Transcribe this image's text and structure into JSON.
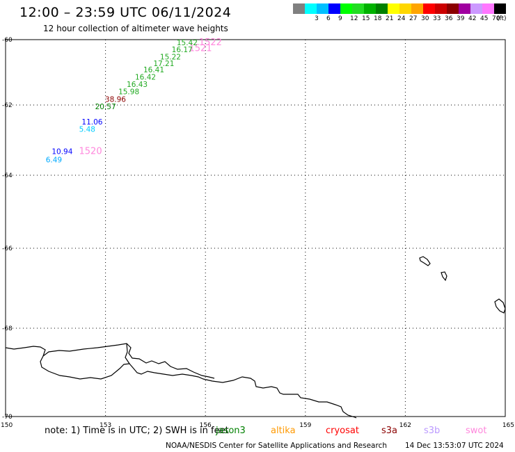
{
  "header": {
    "title": "12:00 – 23:59 UTC 06/11/2024",
    "subtitle": "12 hour collection of altimeter wave heights"
  },
  "legend": {
    "swatches": [
      {
        "color": "#808080",
        "label": ""
      },
      {
        "color": "#00ffff",
        "label": "3"
      },
      {
        "color": "#00bfff",
        "label": "6"
      },
      {
        "color": "#0000ff",
        "label": "9"
      },
      {
        "color": "#00ff00",
        "label": "12"
      },
      {
        "color": "#22dd22",
        "label": "15"
      },
      {
        "color": "#00b200",
        "label": "18"
      },
      {
        "color": "#008000",
        "label": "21"
      },
      {
        "color": "#ffff00",
        "label": "24"
      },
      {
        "color": "#ffd700",
        "label": "27"
      },
      {
        "color": "#ffa500",
        "label": "30"
      },
      {
        "color": "#ff0000",
        "label": "33"
      },
      {
        "color": "#cc0000",
        "label": "36"
      },
      {
        "color": "#8b0000",
        "label": "39"
      },
      {
        "color": "#a000a0",
        "label": "42"
      },
      {
        "color": "#cc99ff",
        "label": "45"
      },
      {
        "color": "#ff77ff",
        "label": "70"
      },
      {
        "color": "#000000",
        "label": ""
      }
    ],
    "unit": "(ft)"
  },
  "map": {
    "lat_labels": [
      {
        "value": -60,
        "text": "-60"
      },
      {
        "value": -62,
        "text": "-62"
      },
      {
        "value": -64,
        "text": "-64"
      },
      {
        "value": -66,
        "text": "-66"
      },
      {
        "value": -68,
        "text": "-68"
      },
      {
        "value": -70,
        "text": "-70"
      }
    ],
    "lon_labels": [
      {
        "value": 150,
        "text": "150"
      },
      {
        "value": 153,
        "text": "153"
      },
      {
        "value": 156,
        "text": "156"
      },
      {
        "value": 159,
        "text": "159"
      },
      {
        "value": 162,
        "text": "162"
      },
      {
        "value": 165,
        "text": "165"
      }
    ],
    "observations": [
      {
        "lon": 155.45,
        "lat": -60.08,
        "text": "15.42",
        "color": "#22aa22"
      },
      {
        "lon": 155.3,
        "lat": -60.3,
        "text": "16.17",
        "color": "#22aa22"
      },
      {
        "lon": 154.95,
        "lat": -60.52,
        "text": "15.22",
        "color": "#22aa22"
      },
      {
        "lon": 154.75,
        "lat": -60.72,
        "text": "17.21",
        "color": "#22aa22"
      },
      {
        "lon": 154.45,
        "lat": -60.92,
        "text": "16.41",
        "color": "#22aa22"
      },
      {
        "lon": 154.2,
        "lat": -61.14,
        "text": "16.42",
        "color": "#22aa22"
      },
      {
        "lon": 153.95,
        "lat": -61.36,
        "text": "16.43",
        "color": "#22aa22"
      },
      {
        "lon": 153.7,
        "lat": -61.58,
        "text": "15.98",
        "color": "#22aa22"
      },
      {
        "lon": 153.3,
        "lat": -61.82,
        "text": "38.96",
        "color": "#8b0000"
      },
      {
        "lon": 153.0,
        "lat": -62.04,
        "text": "20.57",
        "color": "#008000"
      },
      {
        "lon": 152.6,
        "lat": -62.48,
        "text": "11.06",
        "color": "#0000ff"
      },
      {
        "lon": 152.45,
        "lat": -62.68,
        "text": "5.48",
        "color": "#00ccff"
      },
      {
        "lon": 151.7,
        "lat": -63.32,
        "text": "10.94",
        "color": "#0000ff"
      },
      {
        "lon": 151.45,
        "lat": -63.55,
        "text": "6.49",
        "color": "#00aaff"
      }
    ],
    "pass_labels": [
      {
        "lon": 156.15,
        "lat": -60.06,
        "text": "1522",
        "color": "#ff88dd"
      },
      {
        "lon": 155.85,
        "lat": -60.24,
        "text": "1521",
        "color": "#ff88dd"
      },
      {
        "lon": 152.55,
        "lat": -63.3,
        "text": "1520",
        "color": "#ff88dd"
      }
    ]
  },
  "footer": {
    "note": "note:  1) Time is in UTC;  2) SWH is in feet",
    "satellites": [
      {
        "name": "jason3",
        "color": "#008000"
      },
      {
        "name": "altika",
        "color": "#ff9900"
      },
      {
        "name": "cryosat",
        "color": "#ff0000"
      },
      {
        "name": "s3a",
        "color": "#8b0000"
      },
      {
        "name": "s3b",
        "color": "#bb99ff"
      },
      {
        "name": "swot",
        "color": "#ff88dd"
      }
    ],
    "credit": "NOAA/NESDIS Center for Satellite Applications and Research",
    "timestamp": "14 Dec 13:53:07 UTC 2024"
  }
}
